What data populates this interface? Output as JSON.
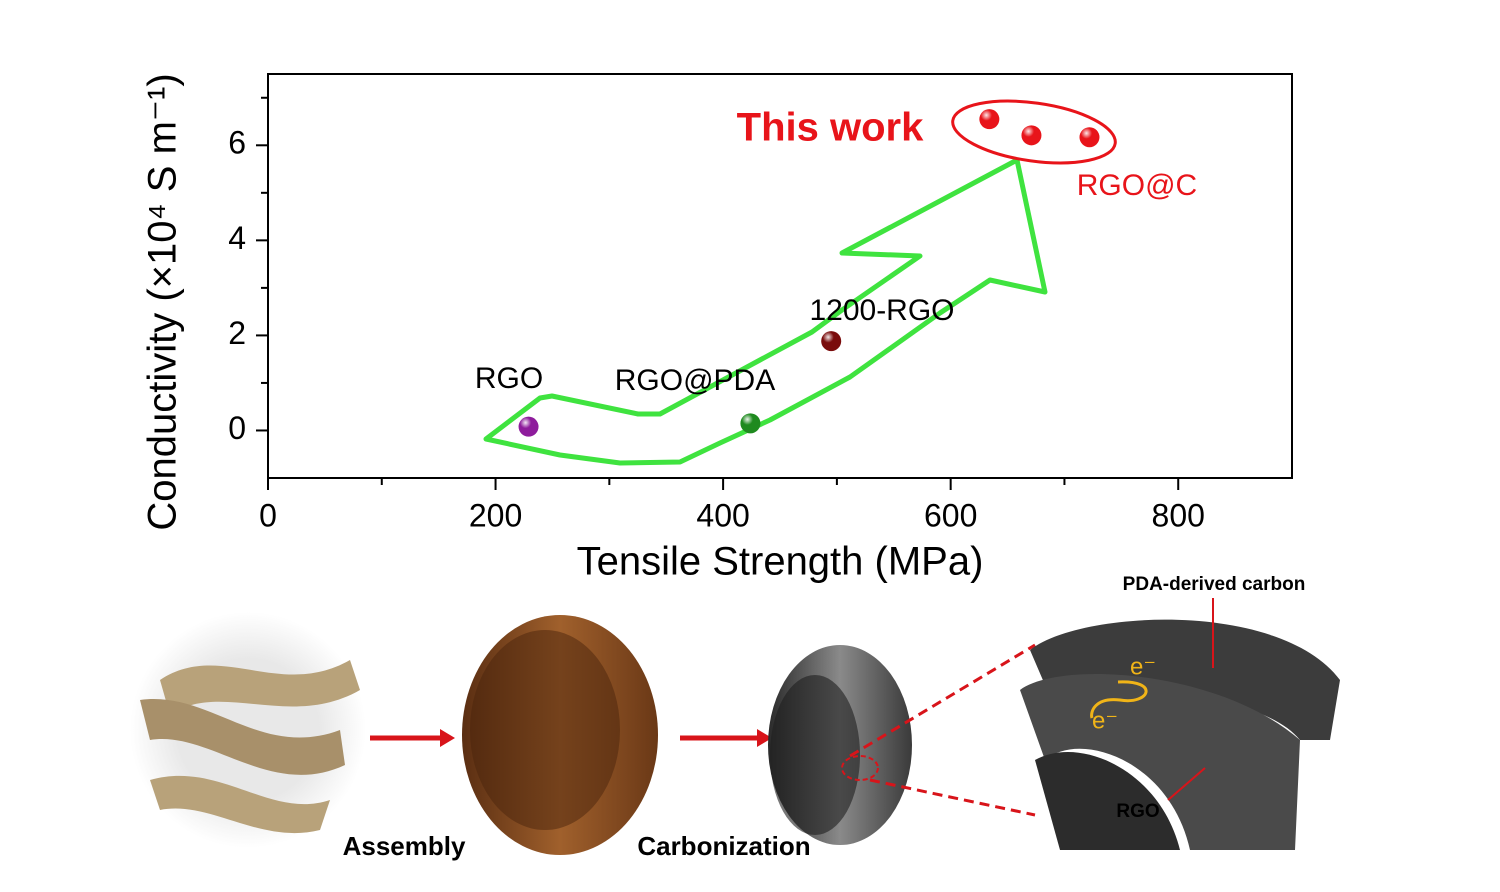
{
  "chart_data": {
    "type": "scatter",
    "xlabel": "Tensile Strength (MPa)",
    "ylabel": "Conductivity (×10⁴ S m⁻¹)",
    "xlim": [
      0,
      900
    ],
    "xticks": [
      0,
      200,
      400,
      600,
      800
    ],
    "xminorticks": [
      100,
      300,
      500,
      700
    ],
    "ylim": [
      -1,
      7.5
    ],
    "yticks": [
      0,
      2,
      4,
      6
    ],
    "yminorticks": [
      1,
      3,
      5,
      7
    ],
    "series": [
      {
        "name": "RGO",
        "color": "#8e1c9c",
        "x": [
          229
        ],
        "values": [
          0.08
        ]
      },
      {
        "name": "RGO@PDA",
        "color": "#1f8a1f",
        "x": [
          424
        ],
        "values": [
          0.15
        ]
      },
      {
        "name": "1200-RGO",
        "color": "#7a0c0c",
        "x": [
          495
        ],
        "values": [
          1.88
        ]
      },
      {
        "name": "RGO@C",
        "color": "#e8141a",
        "x": [
          634,
          671,
          722
        ],
        "values": [
          6.55,
          6.21,
          6.17
        ]
      }
    ],
    "annotation": "This work"
  },
  "schematic": {
    "steps": [
      "Assembly",
      "Carbonization"
    ],
    "labels": [
      "PDA-derived carbon",
      "RGO"
    ],
    "electron": [
      "e⁻",
      "e⁻"
    ]
  }
}
